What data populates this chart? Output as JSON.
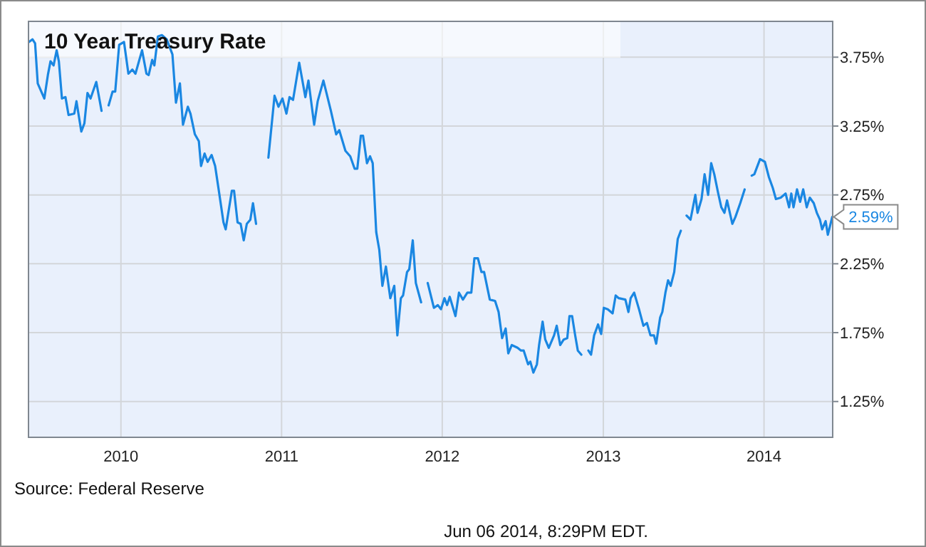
{
  "chart_data": {
    "type": "line",
    "title": "10 Year Treasury Rate",
    "x": [
      "2009-06-06",
      "2009-06-14",
      "2009-06-20",
      "2009-06-26",
      "2009-07-11",
      "2009-07-19",
      "2009-07-25",
      "2009-08-01",
      "2009-08-08",
      "2009-08-13",
      "2009-08-20",
      "2009-08-28",
      "2009-09-04",
      "2009-09-17",
      "2009-09-22",
      "2009-10-03",
      "2009-10-10",
      "2009-10-17",
      "2009-10-24",
      "2009-11-06",
      "2009-11-18",
      "2009-11-25",
      "2009-12-04",
      "2009-12-13",
      "2009-12-19",
      "2009-12-28",
      "2010-01-08",
      "2010-01-18",
      "2010-01-27",
      "2010-02-03",
      "2010-02-18",
      "2010-02-28",
      "2010-03-05",
      "2010-03-13",
      "2010-03-18",
      "2010-03-26",
      "2010-04-04",
      "2010-04-15",
      "2010-04-28",
      "2010-05-06",
      "2010-05-15",
      "2010-05-22",
      "2010-06-02",
      "2010-06-08",
      "2010-06-18",
      "2010-06-27",
      "2010-07-02",
      "2010-07-10",
      "2010-07-17",
      "2010-07-26",
      "2010-08-03",
      "2010-08-11",
      "2010-08-22",
      "2010-08-27",
      "2010-09-10",
      "2010-09-15",
      "2010-09-23",
      "2010-09-30",
      "2010-10-07",
      "2010-10-14",
      "2010-10-22",
      "2010-10-28",
      "2010-11-04",
      "2010-11-18",
      "2010-12-02",
      "2010-12-16",
      "2010-12-25",
      "2011-01-03",
      "2011-01-12",
      "2011-01-19",
      "2011-01-27",
      "2011-02-10",
      "2011-02-24",
      "2011-03-03",
      "2011-03-16",
      "2011-03-24",
      "2011-04-06",
      "2011-04-23",
      "2011-05-05",
      "2011-05-12",
      "2011-05-26",
      "2011-06-06",
      "2011-06-16",
      "2011-06-22",
      "2011-06-30",
      "2011-07-05",
      "2011-07-14",
      "2011-07-21",
      "2011-07-27",
      "2011-08-04",
      "2011-08-11",
      "2011-08-18",
      "2011-08-26",
      "2011-09-05",
      "2011-09-14",
      "2011-09-21",
      "2011-09-29",
      "2011-10-04",
      "2011-10-13",
      "2011-10-18",
      "2011-10-26",
      "2011-11-02",
      "2011-11-14",
      "2011-11-22",
      "2011-11-29",
      "2011-12-13",
      "2011-12-22",
      "2011-12-29",
      "2012-01-06",
      "2012-01-12",
      "2012-01-18",
      "2012-01-31",
      "2012-02-08",
      "2012-02-17",
      "2012-02-27",
      "2012-03-07",
      "2012-03-14",
      "2012-03-22",
      "2012-03-30",
      "2012-04-05",
      "2012-04-18",
      "2012-04-30",
      "2012-05-08",
      "2012-05-16",
      "2012-05-24",
      "2012-05-30",
      "2012-06-07",
      "2012-06-20",
      "2012-06-28",
      "2012-07-04",
      "2012-07-14",
      "2012-07-19",
      "2012-07-26",
      "2012-08-03",
      "2012-08-08",
      "2012-08-16",
      "2012-08-22",
      "2012-08-30",
      "2012-09-11",
      "2012-09-17",
      "2012-09-25",
      "2012-10-03",
      "2012-10-11",
      "2012-10-16",
      "2012-10-22",
      "2012-10-29",
      "2012-11-04",
      "2012-11-12",
      "2012-11-19",
      "2012-11-28",
      "2012-12-04",
      "2012-12-11",
      "2012-12-20",
      "2012-12-27",
      "2013-01-02",
      "2013-01-11",
      "2013-01-22",
      "2013-01-29",
      "2013-02-05",
      "2013-02-20",
      "2013-02-27",
      "2013-03-04",
      "2013-03-12",
      "2013-03-23",
      "2013-04-02",
      "2013-04-10",
      "2013-04-18",
      "2013-04-26",
      "2013-05-01",
      "2013-05-10",
      "2013-05-15",
      "2013-05-22",
      "2013-05-28",
      "2013-06-03",
      "2013-06-11",
      "2013-06-19",
      "2013-06-26",
      "2013-07-03",
      "2013-07-09",
      "2013-07-18",
      "2013-07-29",
      "2013-08-03",
      "2013-08-12",
      "2013-08-19",
      "2013-08-27",
      "2013-09-03",
      "2013-09-10",
      "2013-09-19",
      "2013-09-26",
      "2013-10-03",
      "2013-10-09",
      "2013-10-21",
      "2013-10-28",
      "2013-11-08",
      "2013-11-18",
      "2013-11-25",
      "2013-12-04",
      "2013-12-10",
      "2013-12-23",
      "2014-01-03",
      "2014-01-12",
      "2014-01-21",
      "2014-01-28",
      "2014-02-08",
      "2014-02-19",
      "2014-02-27",
      "2014-03-04",
      "2014-03-09",
      "2014-03-17",
      "2014-03-24",
      "2014-03-31",
      "2014-04-08",
      "2014-04-15",
      "2014-04-24",
      "2014-05-01",
      "2014-05-08",
      "2014-05-13",
      "2014-05-21",
      "2014-05-26",
      "2014-06-05"
    ],
    "series": [
      {
        "color": "#1a87e2",
        "values": [
          3.86,
          3.88,
          3.85,
          3.56,
          3.45,
          3.62,
          3.72,
          3.69,
          3.8,
          3.72,
          3.45,
          3.46,
          3.33,
          3.34,
          3.43,
          3.21,
          3.27,
          3.49,
          3.45,
          3.57,
          3.36,
          null,
          3.4,
          3.5,
          3.5,
          3.84,
          3.86,
          3.63,
          3.66,
          3.63,
          3.8,
          3.63,
          3.62,
          3.73,
          3.69,
          3.9,
          3.91,
          3.88,
          3.77,
          3.42,
          3.56,
          3.26,
          3.39,
          3.34,
          3.19,
          3.14,
          2.96,
          3.05,
          2.99,
          3.04,
          2.96,
          2.79,
          2.55,
          2.5,
          2.78,
          2.78,
          2.55,
          2.54,
          2.42,
          2.54,
          2.57,
          2.69,
          2.54,
          null,
          3.02,
          3.47,
          3.39,
          3.45,
          3.34,
          3.46,
          3.44,
          3.71,
          3.46,
          3.58,
          3.26,
          3.43,
          3.58,
          3.36,
          3.19,
          3.22,
          3.07,
          3.03,
          2.94,
          2.94,
          3.18,
          3.18,
          2.98,
          3.03,
          2.98,
          2.48,
          2.35,
          2.09,
          2.23,
          2.0,
          2.09,
          1.73,
          2.0,
          2.02,
          2.19,
          2.21,
          2.42,
          2.11,
          1.97,
          null,
          2.11,
          1.93,
          1.95,
          1.92,
          2.0,
          1.95,
          2.01,
          1.87,
          2.04,
          1.99,
          2.04,
          2.04,
          2.29,
          2.29,
          2.19,
          2.19,
          1.99,
          1.98,
          1.9,
          1.71,
          1.78,
          1.6,
          1.66,
          1.64,
          1.62,
          1.62,
          1.52,
          1.54,
          1.46,
          1.52,
          1.66,
          1.83,
          1.7,
          1.64,
          1.73,
          1.8,
          1.66,
          1.7,
          1.71,
          1.87,
          1.87,
          1.73,
          1.62,
          1.59,
          null,
          1.62,
          1.59,
          1.73,
          1.81,
          1.74,
          1.93,
          1.92,
          1.89,
          2.02,
          2.0,
          1.99,
          1.9,
          2.0,
          2.04,
          1.92,
          1.8,
          1.82,
          1.73,
          1.73,
          1.67,
          1.86,
          1.9,
          2.04,
          2.13,
          2.09,
          2.19,
          2.43,
          2.49,
          null,
          2.6,
          2.57,
          2.75,
          2.62,
          2.72,
          2.9,
          2.75,
          2.98,
          2.9,
          2.76,
          2.66,
          2.62,
          2.71,
          2.54,
          2.59,
          2.69,
          2.79,
          null,
          2.89,
          2.9,
          3.01,
          2.99,
          2.88,
          2.8,
          2.72,
          2.73,
          2.76,
          2.66,
          2.76,
          2.66,
          2.79,
          2.7,
          2.79,
          2.66,
          2.73,
          2.69,
          2.62,
          2.57,
          2.5,
          2.56,
          2.46,
          2.59
        ]
      }
    ],
    "xlim": [
      "2009-06-05",
      "2014-06-06"
    ],
    "xticks": [
      "2010",
      "2011",
      "2012",
      "2013",
      "2014"
    ],
    "ylim": [
      0.99,
      4.01
    ],
    "yticks": [
      {
        "value": 1.25,
        "label": "1.25%"
      },
      {
        "value": 1.75,
        "label": "1.75%"
      },
      {
        "value": 2.25,
        "label": "2.25%"
      },
      {
        "value": 2.75,
        "label": "2.75%"
      },
      {
        "value": 3.25,
        "label": "3.25%"
      },
      {
        "value": 3.75,
        "label": "3.75%"
      }
    ],
    "grid": true,
    "marker": "none",
    "line_style": "solid",
    "annotations": [
      {
        "text": "2.59%",
        "x": "2014-06-05",
        "y": 2.59
      },
      "Source: Federal Reserve",
      "Jun 06 2014, 8:29PM EDT."
    ]
  }
}
